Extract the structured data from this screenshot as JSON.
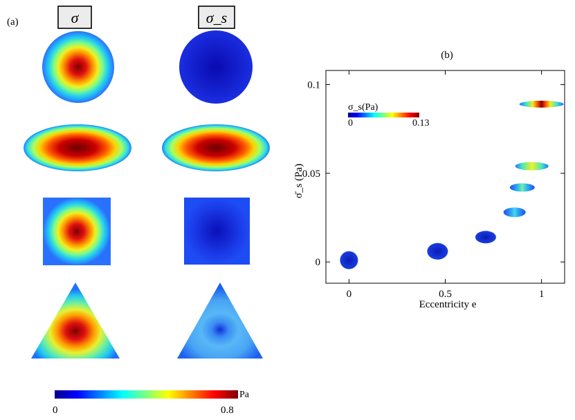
{
  "panel_a": {
    "label": "(a)",
    "column_headers": [
      "σ",
      "σ_s"
    ],
    "rows": [
      {
        "shape": "circle",
        "sigma_max_fraction": 0.9,
        "sigma_s_max_fraction": 0.03
      },
      {
        "shape": "ellipse",
        "sigma_max_fraction": 0.97,
        "sigma_s_max_fraction": 0.9
      },
      {
        "shape": "square",
        "sigma_max_fraction": 0.88,
        "sigma_s_max_fraction": 0.08
      },
      {
        "shape": "triangle",
        "sigma_max_fraction": 0.9,
        "sigma_s_max_fraction": 0.35
      }
    ],
    "colorbar": {
      "min_label": "0",
      "max_label": "0.8",
      "unit": "Pa",
      "min": 0,
      "max": 0.8
    }
  },
  "panel_b": {
    "label": "(b)",
    "inset_colorbar": {
      "title": "σ_s(Pa)",
      "min_label": "0",
      "max_label": "0.13",
      "min": 0,
      "max": 0.13
    }
  },
  "colormap": [
    "#00008f",
    "#0000ff",
    "#0080ff",
    "#00ffff",
    "#80ff80",
    "#ffff00",
    "#ff8000",
    "#ff0000",
    "#800000"
  ],
  "chart_data": {
    "type": "scatter",
    "title": "",
    "xlabel": "Eccentricity e",
    "ylabel": "σ̄_s (Pa)",
    "xlim": [
      -0.12,
      1.12
    ],
    "ylim": [
      -0.012,
      0.108
    ],
    "xticks": [
      0,
      0.5,
      1
    ],
    "xtick_labels": [
      "0",
      "0.5",
      "1"
    ],
    "yticks": [
      0,
      0.05,
      0.1
    ],
    "ytick_labels": [
      "0",
      "0.05",
      "0.1"
    ],
    "grid": false,
    "x": [
      0,
      0.46,
      0.71,
      0.86,
      0.9,
      0.95,
      1.0
    ],
    "y": [
      0.001,
      0.006,
      0.014,
      0.028,
      0.042,
      0.054,
      0.089
    ],
    "marker": "ellipse glyph colored by σ_s"
  }
}
